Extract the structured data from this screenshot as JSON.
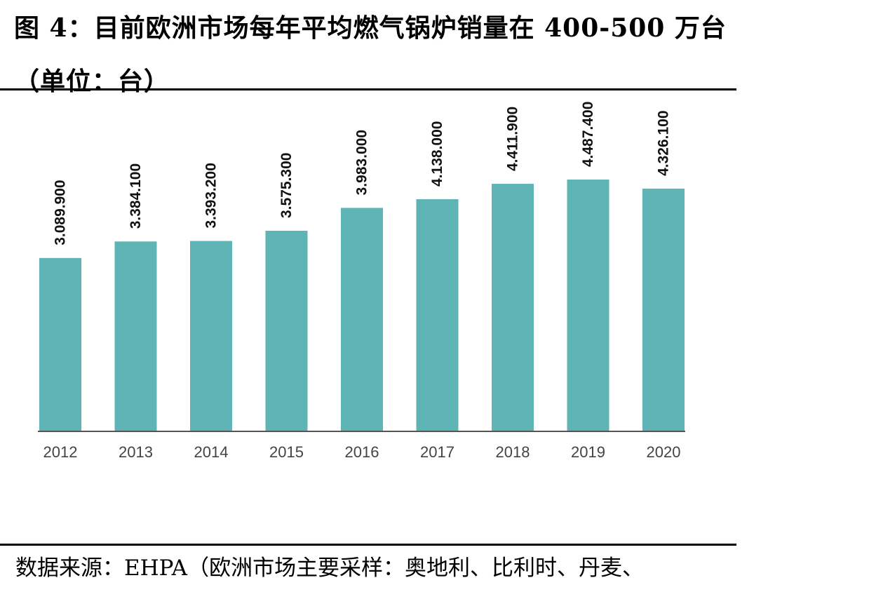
{
  "figure": {
    "title": "图 4：目前欧洲市场每年平均燃气锅炉销量在 400-500 万台（单位：台）",
    "source": "数据来源：EHPA（欧洲市场主要采样：奥地利、比利时、丹麦、"
  },
  "chart_data": {
    "type": "bar",
    "title": "",
    "xlabel": "",
    "ylabel": "",
    "categories": [
      "2012",
      "2013",
      "2014",
      "2015",
      "2016",
      "2017",
      "2018",
      "2019",
      "2020"
    ],
    "values": [
      3089.9,
      3384.1,
      3393.2,
      3575.3,
      3983.0,
      4138.0,
      4411.9,
      4487.4,
      4326.1
    ],
    "data_labels": [
      "3.089.900",
      "3.384.100",
      "3.393.200",
      "3.575.300",
      "3.983.000",
      "4.138.000",
      "4.411.900",
      "4.487.400",
      "4.326.100"
    ],
    "ylim": [
      0,
      6000
    ],
    "grid": false,
    "legend": "none",
    "colors": {
      "bar": "#5fb4b6",
      "axis": "#555555",
      "tick_text": "#444444",
      "label_text": "#111111"
    }
  }
}
